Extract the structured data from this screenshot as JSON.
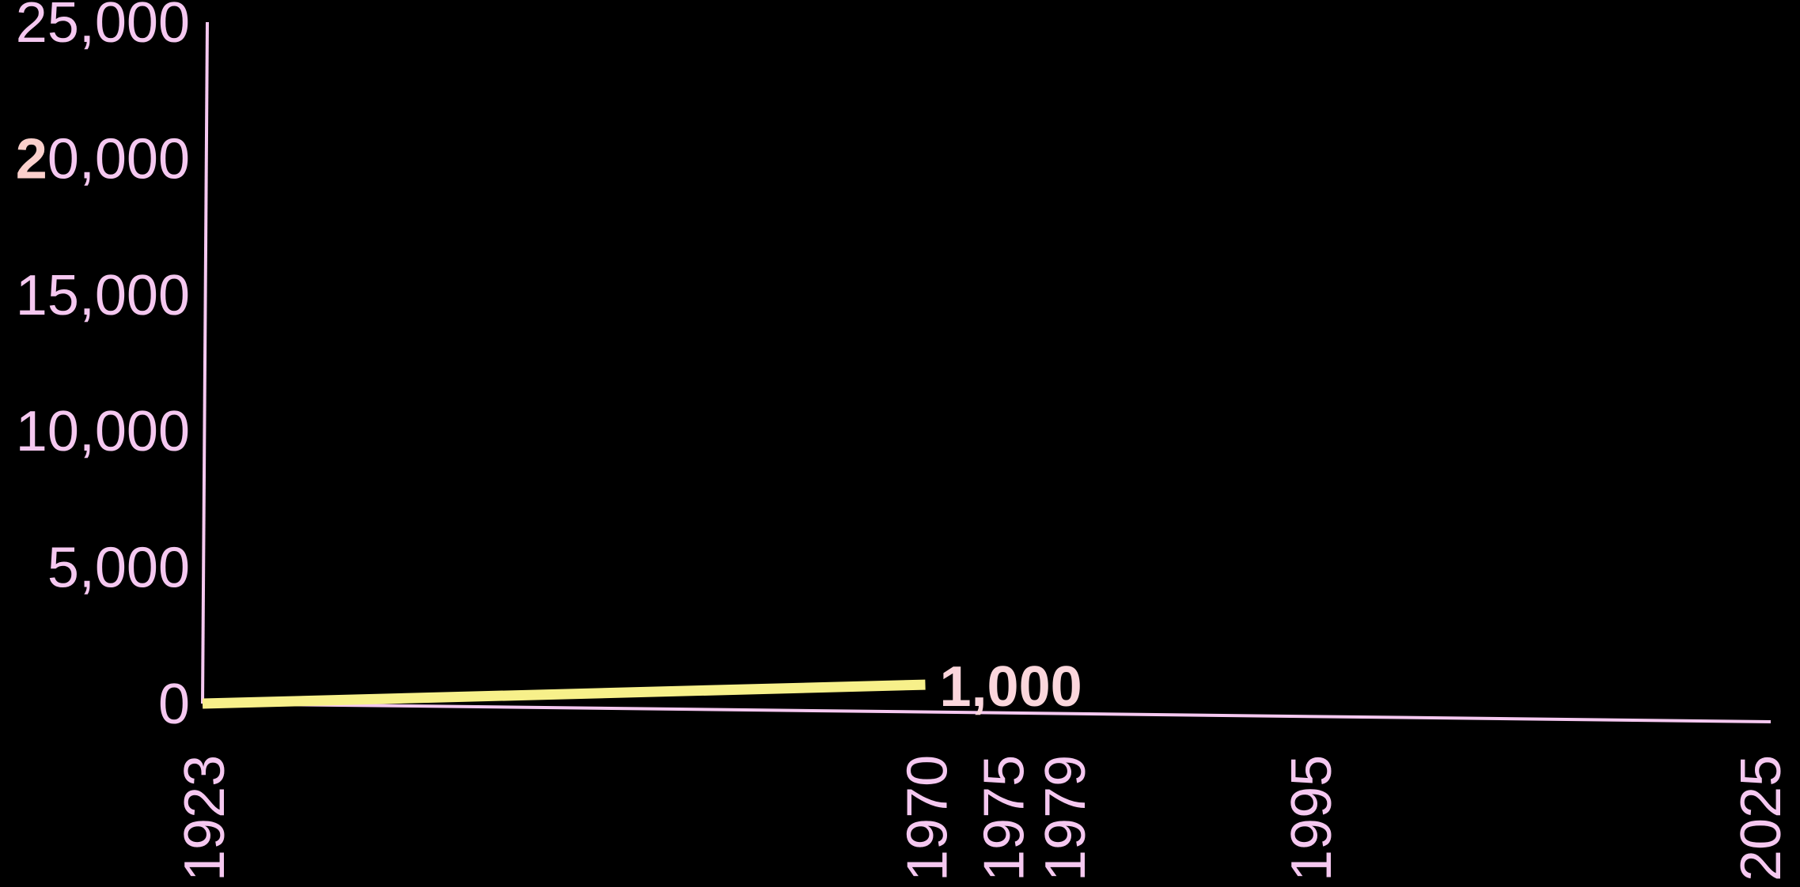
{
  "chart_data": {
    "type": "line",
    "title": "",
    "xlabel": "",
    "ylabel": "",
    "x_ticks": [
      "1923",
      "1970",
      "1975",
      "1979",
      "1995",
      "2025"
    ],
    "y_ticks": [
      "0",
      "5,000",
      "10,000",
      "15,000",
      "20,000",
      "25,000"
    ],
    "xlim": [
      1923,
      2025
    ],
    "ylim": [
      0,
      25000
    ],
    "grid": false,
    "series": [
      {
        "x": [
          1923,
          1970
        ],
        "y": [
          0,
          1000
        ],
        "color": "#f7f08a",
        "end_label": "1,000"
      }
    ],
    "colors": {
      "background": "#000000",
      "axis": "#f5c8f0",
      "tick_text": "#f5c8f0",
      "label_text": "#fbd6dc",
      "highlight_digit": "#fbd0cc"
    }
  }
}
